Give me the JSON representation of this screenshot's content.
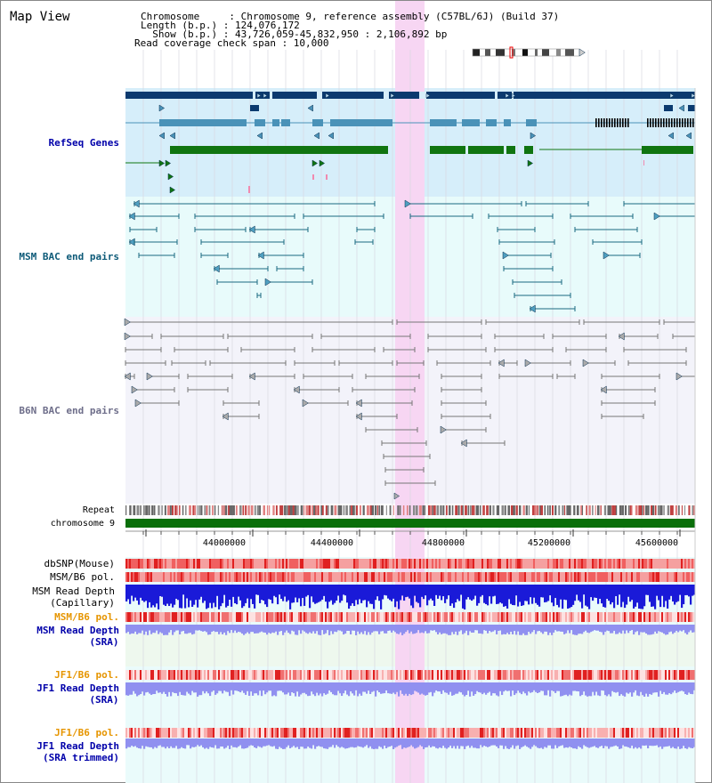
{
  "title": "Map View",
  "header": {
    "chromosome_label": "Chromosome     : Chromosome 9, reference assembly (C57BL/6J) (Build 37)",
    "length_label": "Length (b.p.) : 124,076,172",
    "show_label": "  Show (b.p.) : 43,726,059-45,832,950 : 2,106,892 bp",
    "read_coverage_label": "Read coverage check span : 10,000"
  },
  "tracks": {
    "refseq": "RefSeq Genes",
    "msm_bac": "MSM BAC end pairs",
    "b6n_bac": "B6N BAC end pairs",
    "repeat": "Repeat",
    "chromosome": "chromosome 9"
  },
  "axis": {
    "ticks": [
      "44000000",
      "44400000",
      "44800000",
      "45200000",
      "45600000"
    ]
  },
  "lower_tracks": {
    "dbsnp": "dbSNP(Mouse)",
    "msm_b6_pol_1": "MSM/B6 pol.",
    "msm_read_depth_cap_1": "MSM Read Depth",
    "msm_read_depth_cap_2": "(Capillary)",
    "msm_b6_pol_2": "MSM/B6 pol.",
    "msm_read_depth_sra_1": "MSM Read Depth",
    "msm_read_depth_sra_2": "(SRA)",
    "jf1_b6_pol_1": "JF1/B6 pol.",
    "jf1_read_depth_sra_1": "JF1 Read Depth",
    "jf1_read_depth_sra_2": "(SRA)",
    "jf1_b6_pol_2": "JF1/B6 pol.",
    "jf1_read_depth_trim_1": "JF1 Read Depth",
    "jf1_read_depth_trim_2": "(SRA trimmed)"
  },
  "colors": {
    "refseq_bg": "#d6eefa",
    "msm_bg": "#e8fbfb",
    "b6n_bg": "#f3f3fa",
    "highlight": "#f7d6f3",
    "navy": "#0b3a6f",
    "steelblue": "#4a92b8",
    "green": "#107510",
    "teal": "#1a6a80",
    "gray": "#777777",
    "label_blue": "#0000aa",
    "label_teal": "#0d5a78",
    "label_gray": "#6e6e8a",
    "label_orange": "#e69500",
    "chrom_green": "#0a6f0a"
  }
}
